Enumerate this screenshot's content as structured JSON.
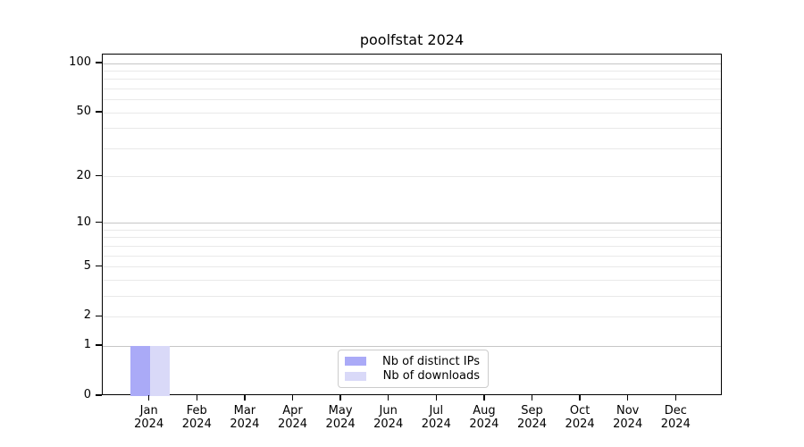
{
  "figure": {
    "background": "#ffffff",
    "spine_color": "#000000"
  },
  "chart_data": {
    "type": "bar",
    "title": "poolfstat 2024",
    "x_axis": {
      "months": [
        "Jan",
        "Feb",
        "Mar",
        "Apr",
        "May",
        "Jun",
        "Jul",
        "Aug",
        "Sep",
        "Oct",
        "Nov",
        "Dec"
      ],
      "year": "2024"
    },
    "y_axis": {
      "scale": "log1p",
      "tick_values": [
        0,
        1,
        2,
        5,
        10,
        20,
        50,
        100
      ],
      "major_grid_values": [
        1,
        10,
        100
      ],
      "minor_grid_values": [
        2,
        3,
        4,
        5,
        6,
        7,
        8,
        9,
        20,
        30,
        40,
        50,
        60,
        70,
        80,
        90
      ],
      "range": [
        0,
        113
      ]
    },
    "series": [
      {
        "name": "Nb of distinct IPs",
        "color": "#aaaaf7",
        "values": [
          1,
          0,
          0,
          0,
          0,
          0,
          0,
          0,
          0,
          0,
          0,
          0
        ]
      },
      {
        "name": "Nb of downloads",
        "color": "#d9d9f8",
        "values": [
          1,
          0,
          0,
          0,
          0,
          0,
          0,
          0,
          0,
          0,
          0,
          0
        ]
      }
    ],
    "legend": {
      "location": "lower center"
    },
    "grid": {
      "major_color": "#c6c6c6",
      "minor_color": "#e9e9e9"
    }
  }
}
